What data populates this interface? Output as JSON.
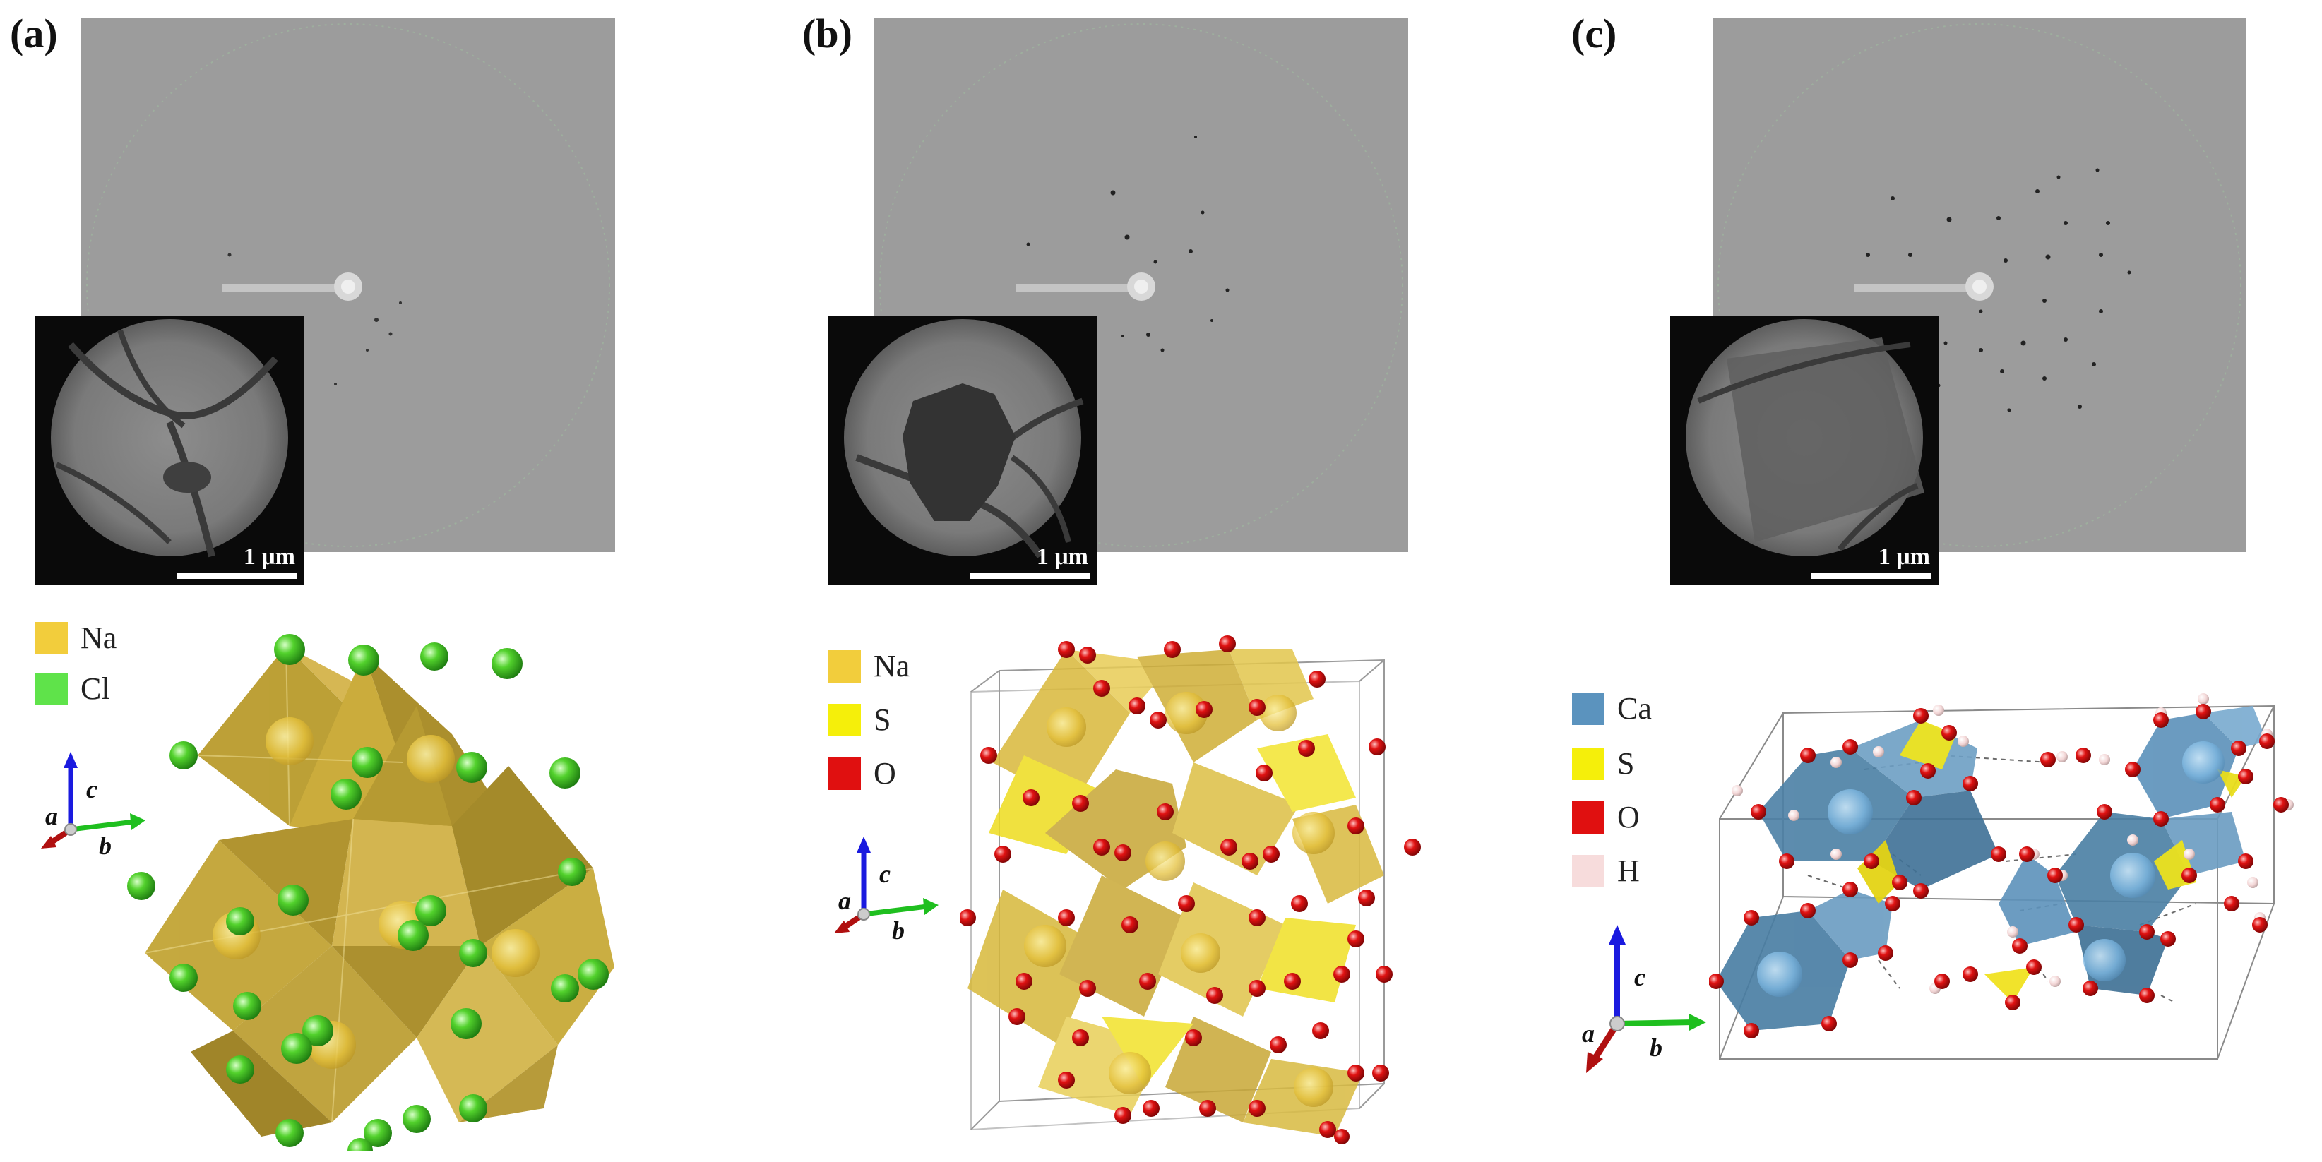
{
  "panels": [
    {
      "label": "(a)",
      "scale_text": "1 μm",
      "legend": [
        {
          "text": "Na",
          "color": "#f2cd3c"
        },
        {
          "text": "Cl",
          "color": "#5fe34a"
        }
      ],
      "axes": {
        "a": "a",
        "b": "b",
        "c": "c"
      }
    },
    {
      "label": "(b)",
      "scale_text": "1 μm",
      "legend": [
        {
          "text": "Na",
          "color": "#f2cd3c"
        },
        {
          "text": "S",
          "color": "#f5ef0a"
        },
        {
          "text": "O",
          "color": "#e01010"
        }
      ],
      "axes": {
        "a": "a",
        "b": "b",
        "c": "c"
      }
    },
    {
      "label": "(c)",
      "scale_text": "1 μm",
      "legend": [
        {
          "text": "Ca",
          "color": "#5b93be"
        },
        {
          "text": "S",
          "color": "#f5ef0a"
        },
        {
          "text": "O",
          "color": "#e01010"
        },
        {
          "text": "H",
          "color": "#f7dcdc"
        }
      ],
      "axes": {
        "a": "a",
        "b": "b",
        "c": "c"
      }
    }
  ],
  "colors": {
    "na_polyhedron": "#c9a832",
    "cl_atom": "#4fd32e",
    "o_atom": "#e01616",
    "ca_polyhedron": "#4f86ab",
    "s_tetrahedron": "#f1ea10",
    "h_atom": "#f3d8d8",
    "axis_a": "#b01010",
    "axis_b": "#1fbf1f",
    "axis_c": "#1a1adf"
  }
}
